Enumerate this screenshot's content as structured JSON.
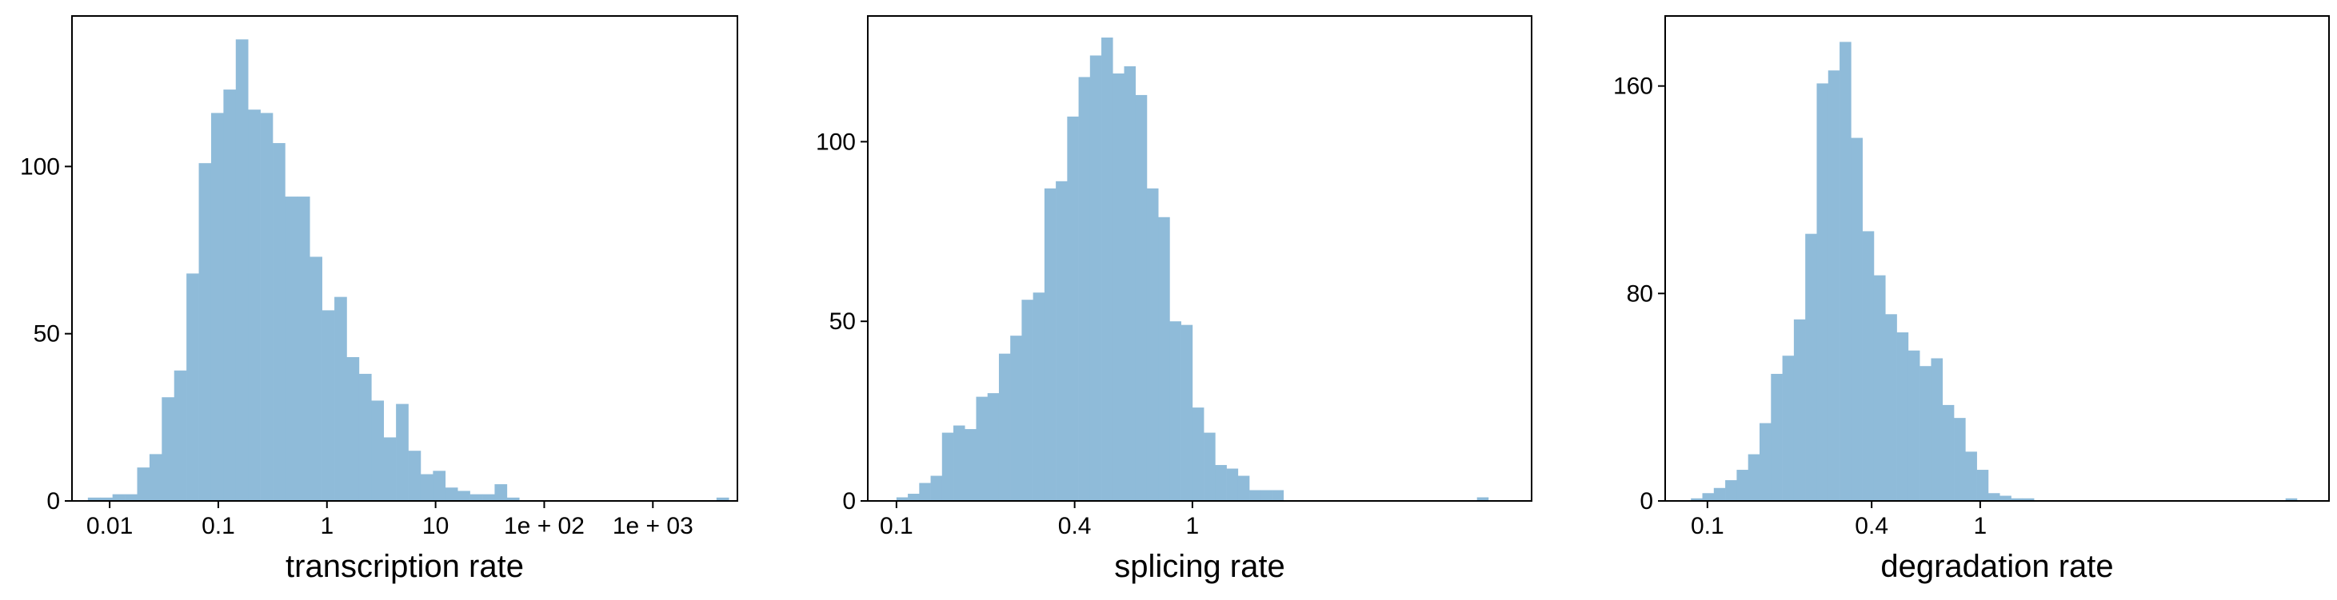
{
  "chart_data": [
    {
      "type": "bar",
      "xlabel": "transcription rate",
      "xscale": "log",
      "color": "#8fbbd9",
      "grid": false,
      "legend": "none",
      "xticks": [
        {
          "value": 0.01,
          "label": "0.01"
        },
        {
          "value": 0.1,
          "label": "0.1"
        },
        {
          "value": 1,
          "label": "1"
        },
        {
          "value": 10,
          "label": "10"
        },
        {
          "value": 100,
          "label": "1e + 02"
        },
        {
          "value": 1000,
          "label": "1e + 03"
        }
      ],
      "yticks": [
        {
          "value": 0,
          "label": "0"
        },
        {
          "value": 50,
          "label": "50"
        },
        {
          "value": 100,
          "label": "100"
        }
      ],
      "xlim": [
        0.0045,
        6000
      ],
      "ylim": [
        0,
        145
      ],
      "bins": {
        "start": 0.0063,
        "end": 5000,
        "counts": [
          1,
          1,
          2,
          2,
          10,
          14,
          31,
          39,
          68,
          101,
          116,
          123,
          138,
          117,
          116,
          107,
          91,
          91,
          73,
          57,
          61,
          43,
          38,
          30,
          19,
          29,
          15,
          8,
          9,
          4,
          3,
          2,
          2,
          5,
          1,
          0,
          0,
          0,
          0,
          0,
          0,
          0,
          0,
          0,
          0,
          0,
          0,
          0,
          0,
          0,
          0,
          1
        ]
      }
    },
    {
      "type": "bar",
      "xlabel": "splicing rate",
      "xscale": "log",
      "color": "#8fbbd9",
      "grid": false,
      "legend": "none",
      "xticks": [
        {
          "value": 0.1,
          "label": "0.1"
        },
        {
          "value": 0.4,
          "label": "0.4"
        },
        {
          "value": 1,
          "label": "1"
        }
      ],
      "yticks": [
        {
          "value": 0,
          "label": "0"
        },
        {
          "value": 50,
          "label": "50"
        },
        {
          "value": 100,
          "label": "100"
        }
      ],
      "xlim": [
        0.08,
        14
      ],
      "ylim": [
        0,
        135
      ],
      "bins": {
        "start": 0.1,
        "end": 10,
        "counts": [
          1,
          2,
          5,
          7,
          19,
          21,
          20,
          29,
          30,
          41,
          46,
          56,
          58,
          87,
          89,
          107,
          118,
          124,
          129,
          119,
          121,
          113,
          87,
          79,
          50,
          49,
          26,
          19,
          10,
          9,
          7,
          3,
          3,
          3,
          0,
          0,
          0,
          0,
          0,
          0,
          0,
          0,
          0,
          0,
          0,
          0,
          0,
          0,
          0,
          0,
          0,
          1
        ]
      }
    },
    {
      "type": "bar",
      "xlabel": "degradation rate",
      "xscale": "log",
      "color": "#8fbbd9",
      "grid": false,
      "legend": "none",
      "xticks": [
        {
          "value": 0.1,
          "label": "0.1"
        },
        {
          "value": 0.4,
          "label": "0.4"
        },
        {
          "value": 1,
          "label": "1"
        }
      ],
      "yticks": [
        {
          "value": 0,
          "label": "0"
        },
        {
          "value": 80,
          "label": "80"
        },
        {
          "value": 160,
          "label": "160"
        }
      ],
      "xlim": [
        0.07,
        19
      ],
      "ylim": [
        0,
        187
      ],
      "bins": {
        "start": 0.087,
        "end": 14.5,
        "counts": [
          1,
          3,
          5,
          8,
          12,
          18,
          30,
          49,
          56,
          70,
          103,
          161,
          166,
          177,
          140,
          104,
          87,
          72,
          65,
          58,
          52,
          55,
          37,
          32,
          19,
          12,
          3,
          2,
          1,
          1,
          0,
          0,
          0,
          0,
          0,
          0,
          0,
          0,
          0,
          0,
          0,
          0,
          0,
          0,
          0,
          0,
          0,
          0,
          0,
          0,
          0,
          0,
          1
        ]
      }
    }
  ]
}
